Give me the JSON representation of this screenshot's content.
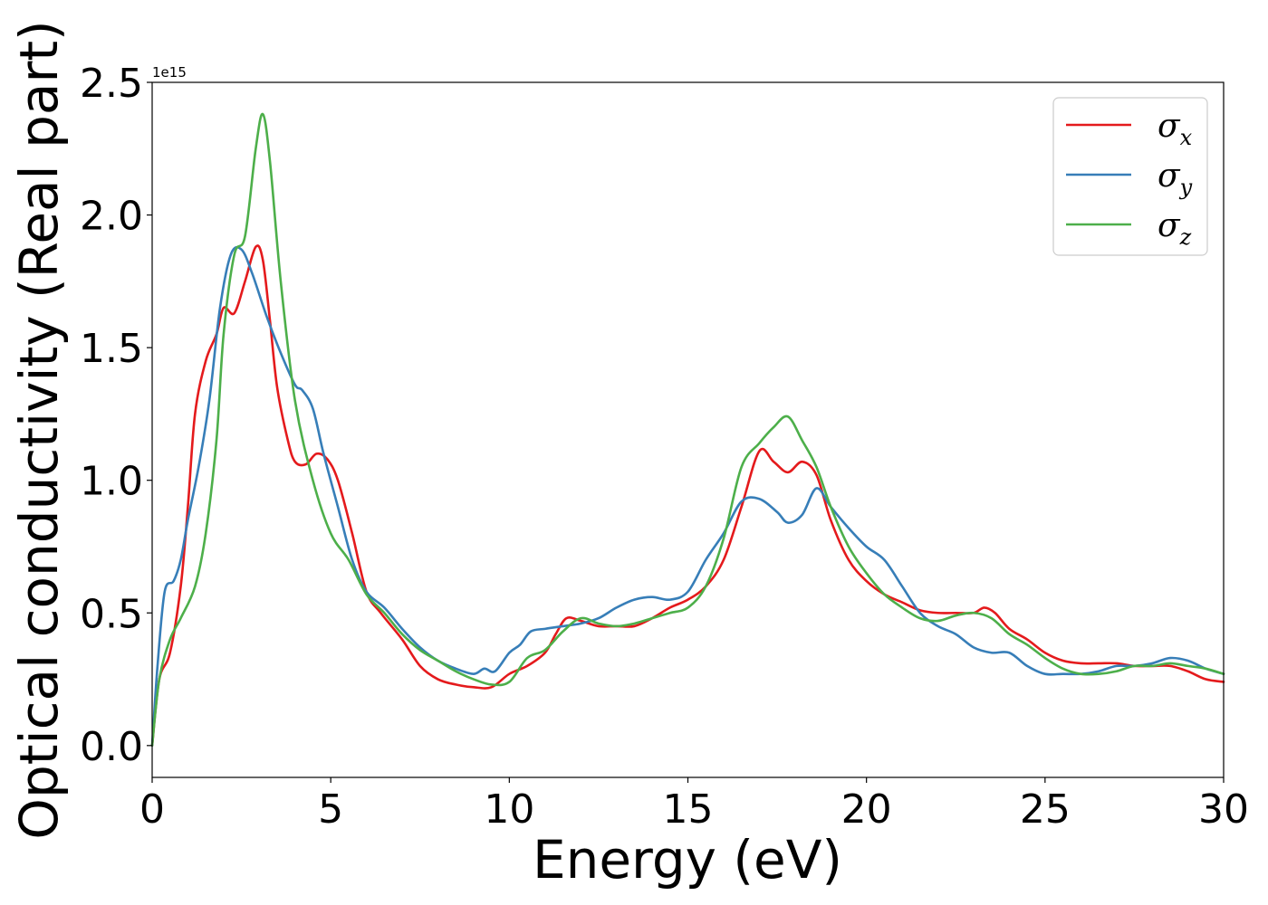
{
  "chart_data": {
    "type": "line",
    "title": "",
    "xlabel": "Energy (eV)",
    "ylabel": "Optical conductivity (Real part)",
    "y_offset_label": "1e15",
    "xlim": [
      0,
      30
    ],
    "ylim": [
      -0.12,
      2.5
    ],
    "xticks": [
      0,
      5,
      10,
      15,
      20,
      25,
      30
    ],
    "xtick_labels": [
      "0",
      "5",
      "10",
      "15",
      "20",
      "25",
      "30"
    ],
    "yticks": [
      0.0,
      0.5,
      1.0,
      1.5,
      2.0,
      2.5
    ],
    "ytick_labels": [
      "0.0",
      "0.5",
      "1.0",
      "1.5",
      "2.0",
      "2.5"
    ],
    "grid": false,
    "legend_position": "top-right",
    "series": [
      {
        "name": "σx",
        "symbol": "σ",
        "subscript": "x",
        "color": "#e41a1c",
        "x": [
          0,
          0.2,
          0.5,
          0.8,
          1.0,
          1.2,
          1.5,
          1.8,
          2.0,
          2.3,
          2.6,
          2.9,
          3.1,
          3.3,
          3.5,
          3.8,
          4.0,
          4.3,
          4.6,
          4.9,
          5.2,
          5.6,
          6.0,
          6.4,
          7.0,
          7.5,
          8.0,
          8.5,
          9.0,
          9.5,
          10.0,
          10.5,
          11.0,
          11.3,
          11.6,
          12.0,
          12.5,
          13.0,
          13.5,
          14.0,
          14.5,
          15.0,
          15.5,
          16.0,
          16.5,
          17.0,
          17.4,
          17.8,
          18.2,
          18.6,
          19.0,
          19.5,
          20.0,
          20.5,
          21.0,
          21.5,
          22.0,
          22.5,
          23.0,
          23.3,
          23.6,
          24.0,
          24.5,
          25.0,
          25.5,
          26.0,
          26.5,
          27.0,
          27.5,
          28.0,
          28.5,
          29.0,
          29.5,
          30.0
        ],
        "y": [
          0.0,
          0.25,
          0.35,
          0.6,
          0.9,
          1.25,
          1.45,
          1.55,
          1.65,
          1.63,
          1.75,
          1.88,
          1.83,
          1.6,
          1.35,
          1.15,
          1.07,
          1.06,
          1.1,
          1.08,
          1.0,
          0.8,
          0.58,
          0.5,
          0.4,
          0.3,
          0.25,
          0.23,
          0.22,
          0.22,
          0.27,
          0.3,
          0.35,
          0.42,
          0.48,
          0.47,
          0.45,
          0.45,
          0.45,
          0.48,
          0.52,
          0.55,
          0.6,
          0.7,
          0.9,
          1.11,
          1.07,
          1.03,
          1.07,
          1.02,
          0.85,
          0.7,
          0.62,
          0.57,
          0.54,
          0.51,
          0.5,
          0.5,
          0.5,
          0.52,
          0.5,
          0.44,
          0.4,
          0.35,
          0.32,
          0.31,
          0.31,
          0.31,
          0.3,
          0.3,
          0.3,
          0.28,
          0.25,
          0.24
        ]
      },
      {
        "name": "σy",
        "symbol": "σ",
        "subscript": "y",
        "color": "#377eb8",
        "x": [
          0,
          0.15,
          0.35,
          0.6,
          0.8,
          1.0,
          1.3,
          1.6,
          1.9,
          2.2,
          2.5,
          2.8,
          3.2,
          3.6,
          4.0,
          4.2,
          4.5,
          4.8,
          5.2,
          5.6,
          6.0,
          6.5,
          7.0,
          7.5,
          8.0,
          8.5,
          9.0,
          9.3,
          9.6,
          10.0,
          10.3,
          10.6,
          11.0,
          11.5,
          12.0,
          12.5,
          13.0,
          13.5,
          14.0,
          14.5,
          15.0,
          15.5,
          16.0,
          16.5,
          17.0,
          17.5,
          17.8,
          18.2,
          18.6,
          19.0,
          19.5,
          20.0,
          20.5,
          21.0,
          21.5,
          22.0,
          22.5,
          23.0,
          23.5,
          24.0,
          24.5,
          25.0,
          25.5,
          26.0,
          26.5,
          27.0,
          27.5,
          28.0,
          28.5,
          29.0,
          29.5,
          30.0
        ],
        "y": [
          0.0,
          0.3,
          0.58,
          0.62,
          0.7,
          0.85,
          1.05,
          1.3,
          1.65,
          1.85,
          1.87,
          1.78,
          1.62,
          1.48,
          1.36,
          1.34,
          1.27,
          1.1,
          0.9,
          0.7,
          0.58,
          0.52,
          0.44,
          0.37,
          0.32,
          0.29,
          0.27,
          0.29,
          0.28,
          0.35,
          0.38,
          0.43,
          0.44,
          0.45,
          0.46,
          0.48,
          0.52,
          0.55,
          0.56,
          0.55,
          0.58,
          0.7,
          0.8,
          0.92,
          0.93,
          0.88,
          0.84,
          0.87,
          0.97,
          0.9,
          0.82,
          0.75,
          0.7,
          0.6,
          0.5,
          0.45,
          0.42,
          0.37,
          0.35,
          0.35,
          0.3,
          0.27,
          0.27,
          0.27,
          0.28,
          0.3,
          0.3,
          0.31,
          0.33,
          0.32,
          0.29,
          0.27
        ]
      },
      {
        "name": "σz",
        "symbol": "σ",
        "subscript": "z",
        "color": "#4daf4a",
        "x": [
          0,
          0.2,
          0.5,
          0.8,
          1.2,
          1.5,
          1.8,
          2.0,
          2.3,
          2.6,
          2.9,
          3.1,
          3.3,
          3.6,
          4.0,
          4.5,
          5.0,
          5.5,
          6.0,
          6.5,
          7.0,
          7.5,
          8.0,
          8.5,
          9.0,
          9.5,
          10.0,
          10.5,
          11.0,
          11.5,
          12.0,
          12.5,
          13.0,
          13.5,
          14.0,
          14.5,
          15.0,
          15.5,
          16.0,
          16.5,
          17.0,
          17.4,
          17.8,
          18.2,
          18.6,
          19.0,
          19.5,
          20.0,
          20.5,
          21.0,
          21.5,
          22.0,
          22.5,
          23.0,
          23.5,
          24.0,
          24.5,
          25.0,
          25.5,
          26.0,
          26.5,
          27.0,
          27.5,
          28.0,
          28.5,
          29.0,
          29.5,
          30.0
        ],
        "y": [
          0.0,
          0.25,
          0.4,
          0.48,
          0.6,
          0.8,
          1.15,
          1.55,
          1.85,
          1.92,
          2.25,
          2.38,
          2.2,
          1.75,
          1.3,
          1.0,
          0.8,
          0.7,
          0.57,
          0.5,
          0.42,
          0.36,
          0.32,
          0.28,
          0.25,
          0.23,
          0.24,
          0.33,
          0.36,
          0.43,
          0.48,
          0.46,
          0.45,
          0.46,
          0.48,
          0.5,
          0.52,
          0.6,
          0.78,
          1.05,
          1.14,
          1.2,
          1.24,
          1.15,
          1.05,
          0.9,
          0.75,
          0.65,
          0.57,
          0.52,
          0.48,
          0.47,
          0.49,
          0.5,
          0.48,
          0.42,
          0.38,
          0.33,
          0.29,
          0.27,
          0.27,
          0.28,
          0.3,
          0.3,
          0.31,
          0.3,
          0.29,
          0.27
        ]
      }
    ]
  }
}
